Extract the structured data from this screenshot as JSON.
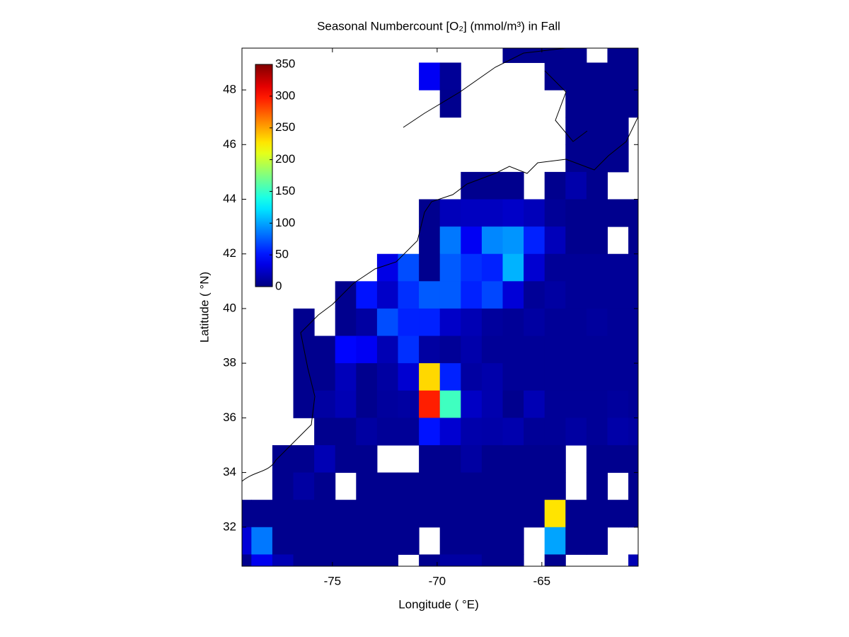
{
  "chart_data": {
    "type": "heatmap",
    "title": "Seasonal Numbercount [O₂] (mmol/m³) in  Fall",
    "x_label": "Longitude ( °E)",
    "y_label": "Latitude ( °N)",
    "x": [
      -79.37,
      -78.37,
      -77.37,
      -76.37,
      -75.37,
      -74.37,
      -73.37,
      -72.37,
      -71.37,
      -70.37,
      -69.37,
      -68.37,
      -67.37,
      -66.37,
      -65.37,
      -64.37,
      -63.37,
      -62.37,
      -61.37,
      -60.37
    ],
    "y": [
      49.5,
      48.5,
      47.5,
      46.5,
      45.5,
      44.5,
      43.5,
      42.5,
      41.5,
      40.5,
      39.5,
      38.5,
      37.5,
      36.5,
      35.5,
      34.5,
      33.5,
      32.5,
      31.5,
      30.5
    ],
    "z": [
      [
        null,
        null,
        null,
        null,
        null,
        null,
        null,
        null,
        null,
        null,
        null,
        null,
        null,
        5,
        5,
        5,
        5,
        null,
        5,
        5
      ],
      [
        null,
        null,
        null,
        null,
        null,
        null,
        null,
        null,
        null,
        40,
        8,
        null,
        null,
        null,
        null,
        5,
        5,
        5,
        5,
        5
      ],
      [
        null,
        null,
        null,
        null,
        null,
        null,
        null,
        null,
        null,
        null,
        5,
        null,
        null,
        null,
        null,
        null,
        5,
        5,
        5,
        5
      ],
      [
        null,
        null,
        null,
        null,
        null,
        null,
        null,
        null,
        null,
        null,
        null,
        null,
        null,
        null,
        null,
        null,
        5,
        5,
        5,
        null
      ],
      [
        null,
        null,
        null,
        null,
        null,
        null,
        null,
        null,
        null,
        null,
        null,
        null,
        null,
        null,
        null,
        null,
        5,
        5,
        5,
        null
      ],
      [
        null,
        null,
        null,
        null,
        null,
        null,
        null,
        null,
        null,
        null,
        null,
        5,
        5,
        5,
        null,
        5,
        15,
        5,
        null,
        null
      ],
      [
        null,
        null,
        null,
        null,
        null,
        null,
        null,
        null,
        null,
        5,
        20,
        22,
        22,
        25,
        20,
        8,
        5,
        5,
        5,
        5
      ],
      [
        null,
        null,
        null,
        null,
        null,
        null,
        null,
        null,
        null,
        5,
        85,
        40,
        90,
        95,
        55,
        20,
        5,
        5,
        null,
        5
      ],
      [
        null,
        null,
        null,
        null,
        null,
        null,
        null,
        35,
        70,
        5,
        75,
        60,
        55,
        105,
        28,
        8,
        8,
        8,
        8,
        8
      ],
      [
        null,
        null,
        null,
        null,
        null,
        5,
        50,
        25,
        60,
        75,
        75,
        55,
        68,
        30,
        8,
        12,
        8,
        8,
        8,
        8
      ],
      [
        null,
        null,
        null,
        5,
        null,
        5,
        12,
        70,
        55,
        55,
        25,
        18,
        10,
        8,
        12,
        8,
        8,
        10,
        8,
        8
      ],
      [
        null,
        null,
        null,
        5,
        5,
        45,
        40,
        18,
        60,
        12,
        8,
        15,
        8,
        8,
        8,
        8,
        8,
        8,
        8,
        8
      ],
      [
        null,
        null,
        null,
        5,
        5,
        20,
        5,
        12,
        28,
        232,
        55,
        12,
        15,
        8,
        8,
        8,
        8,
        8,
        8,
        8
      ],
      [
        null,
        null,
        null,
        5,
        12,
        18,
        5,
        10,
        12,
        296,
        153,
        24,
        16,
        5,
        18,
        8,
        8,
        8,
        10,
        8
      ],
      [
        null,
        null,
        null,
        null,
        5,
        5,
        12,
        8,
        8,
        50,
        28,
        15,
        14,
        16,
        8,
        8,
        12,
        8,
        14,
        12
      ],
      [
        null,
        null,
        5,
        5,
        18,
        5,
        5,
        null,
        null,
        5,
        5,
        12,
        5,
        5,
        5,
        5,
        null,
        5,
        5,
        5
      ],
      [
        null,
        null,
        5,
        12,
        5,
        null,
        5,
        5,
        5,
        5,
        5,
        5,
        5,
        5,
        5,
        5,
        null,
        5,
        null,
        5
      ],
      [
        5,
        5,
        5,
        5,
        5,
        5,
        5,
        5,
        5,
        5,
        5,
        5,
        5,
        5,
        5,
        228,
        5,
        5,
        5,
        5
      ],
      [
        30,
        85,
        5,
        5,
        5,
        5,
        5,
        5,
        5,
        null,
        5,
        5,
        5,
        5,
        null,
        100,
        5,
        5,
        null,
        null
      ],
      [
        5,
        38,
        18,
        5,
        5,
        5,
        5,
        5,
        null,
        5,
        12,
        12,
        5,
        5,
        null,
        5,
        null,
        null,
        null,
        18
      ]
    ],
    "xlim": [
      -79.32,
      -60.4
    ],
    "ylim": [
      30.57,
      49.53
    ],
    "xticks": [
      -75,
      -70,
      -65
    ],
    "yticks": [
      32,
      34,
      36,
      38,
      40,
      42,
      44,
      46,
      48
    ],
    "clim": [
      0,
      350
    ],
    "cticks": [
      0,
      50,
      100,
      150,
      200,
      250,
      300,
      350
    ],
    "colormap": "jet"
  }
}
